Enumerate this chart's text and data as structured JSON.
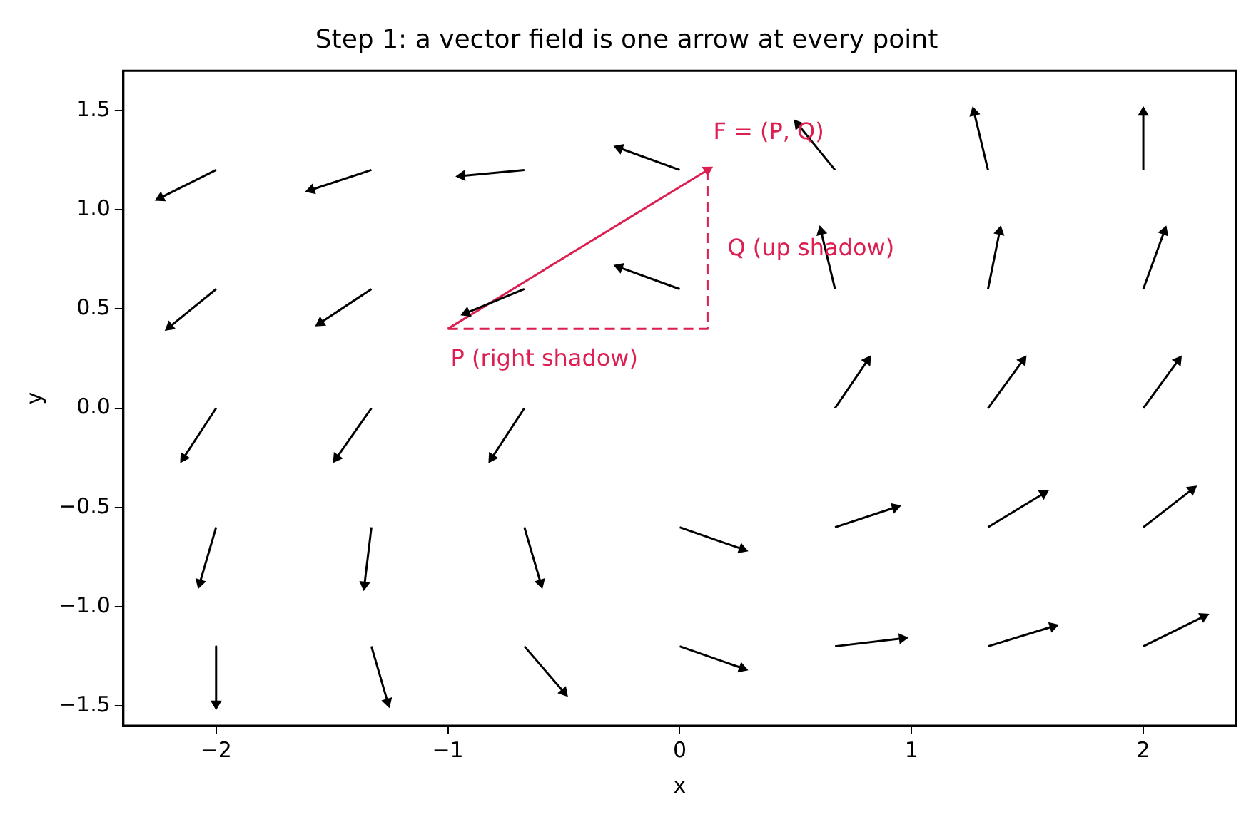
{
  "chart_data": {
    "type": "line",
    "title": "Step 1: a vector field is one arrow at every point",
    "xlabel": "x",
    "ylabel": "y",
    "xlim": [
      -2.4,
      2.4
    ],
    "ylim": [
      -1.6,
      1.7
    ],
    "xticks": [
      {
        "value": -2,
        "label": "−2"
      },
      {
        "value": -1,
        "label": "−1"
      },
      0,
      1,
      2
    ],
    "yticks": [
      {
        "value": -1.5,
        "label": "−1.5"
      },
      {
        "value": -1,
        "label": "−1.0"
      },
      {
        "value": -0.5,
        "label": "−0.5"
      },
      {
        "value": 0,
        "label": "0.0"
      },
      0.5,
      {
        "value": 1,
        "label": "1.0"
      },
      1.5
    ],
    "grid": false,
    "legend": false,
    "series": [
      {
        "color": "#000000",
        "x": [
          -2,
          -2.24
        ],
        "values": [
          1.2,
          1.06
        ]
      },
      {
        "color": "#000000",
        "x": [
          -1.33,
          -1.59
        ],
        "values": [
          1.2,
          1.1
        ]
      },
      {
        "color": "#000000",
        "x": [
          -0.67,
          -0.94
        ],
        "values": [
          1.2,
          1.17
        ]
      },
      {
        "color": "#000000",
        "x": [
          0,
          -0.26
        ],
        "values": [
          1.2,
          1.31
        ]
      },
      {
        "color": "#000000",
        "x": [
          0.67,
          0.51
        ],
        "values": [
          1.2,
          1.43
        ]
      },
      {
        "color": "#000000",
        "x": [
          1.33,
          1.27
        ],
        "values": [
          1.2,
          1.49
        ]
      },
      {
        "color": "#000000",
        "x": [
          2,
          2
        ],
        "values": [
          1.2,
          1.49
        ]
      },
      {
        "color": "#000000",
        "x": [
          -2,
          -2.2
        ],
        "values": [
          0.6,
          0.41
        ]
      },
      {
        "color": "#000000",
        "x": [
          -1.33,
          -1.55
        ],
        "values": [
          0.6,
          0.43
        ]
      },
      {
        "color": "#000000",
        "x": [
          -0.67,
          -0.92
        ],
        "values": [
          0.6,
          0.48
        ]
      },
      {
        "color": "#000000",
        "x": [
          0,
          -0.26
        ],
        "values": [
          0.6,
          0.71
        ]
      },
      {
        "color": "#000000",
        "x": [
          0.67,
          0.61
        ],
        "values": [
          0.6,
          0.89
        ]
      },
      {
        "color": "#000000",
        "x": [
          1.33,
          1.38
        ],
        "values": [
          0.6,
          0.89
        ]
      },
      {
        "color": "#000000",
        "x": [
          2,
          2.09
        ],
        "values": [
          0.6,
          0.89
        ]
      },
      {
        "color": "#000000",
        "x": [
          -2,
          -2.14
        ],
        "values": [
          0,
          -0.25
        ]
      },
      {
        "color": "#000000",
        "x": [
          -1.33,
          -1.48
        ],
        "values": [
          0,
          -0.25
        ]
      },
      {
        "color": "#000000",
        "x": [
          -0.67,
          -0.81
        ],
        "values": [
          0,
          -0.25
        ]
      },
      {
        "color": "#000000",
        "x": [
          0.67,
          0.81
        ],
        "values": [
          0,
          0.24
        ]
      },
      {
        "color": "#000000",
        "x": [
          1.33,
          1.48
        ],
        "values": [
          0,
          0.24
        ]
      },
      {
        "color": "#000000",
        "x": [
          2,
          2.15
        ],
        "values": [
          0,
          0.24
        ]
      },
      {
        "color": "#000000",
        "x": [
          -2,
          -2.07
        ],
        "values": [
          -0.6,
          -0.88
        ]
      },
      {
        "color": "#000000",
        "x": [
          -1.33,
          -1.36
        ],
        "values": [
          -0.6,
          -0.89
        ]
      },
      {
        "color": "#000000",
        "x": [
          -0.67,
          -0.6
        ],
        "values": [
          -0.6,
          -0.88
        ]
      },
      {
        "color": "#000000",
        "x": [
          0,
          0.27
        ],
        "values": [
          -0.6,
          -0.71
        ]
      },
      {
        "color": "#000000",
        "x": [
          0.67,
          0.93
        ],
        "values": [
          -0.6,
          -0.5
        ]
      },
      {
        "color": "#000000",
        "x": [
          1.33,
          1.57
        ],
        "values": [
          -0.6,
          -0.43
        ]
      },
      {
        "color": "#000000",
        "x": [
          2,
          2.21
        ],
        "values": [
          -0.6,
          -0.41
        ]
      },
      {
        "color": "#000000",
        "x": [
          -2,
          -2
        ],
        "values": [
          -1.2,
          -1.49
        ]
      },
      {
        "color": "#000000",
        "x": [
          -1.33,
          -1.26
        ],
        "values": [
          -1.2,
          -1.48
        ]
      },
      {
        "color": "#000000",
        "x": [
          -0.67,
          -0.5
        ],
        "values": [
          -1.2,
          -1.43
        ]
      },
      {
        "color": "#000000",
        "x": [
          0,
          0.27
        ],
        "values": [
          -1.2,
          -1.31
        ]
      },
      {
        "color": "#000000",
        "x": [
          0.67,
          0.96
        ],
        "values": [
          -1.2,
          -1.16
        ]
      },
      {
        "color": "#000000",
        "x": [
          1.33,
          1.61
        ],
        "values": [
          -1.2,
          -1.1
        ]
      },
      {
        "color": "#000000",
        "x": [
          2,
          2.26
        ],
        "values": [
          -1.2,
          -1.05
        ]
      },
      {
        "color": "#dc1e50",
        "x": [
          -1,
          0.12
        ],
        "values": [
          0.4,
          1.2
        ]
      },
      {
        "color": "#dc1e50",
        "line_style": "dashed",
        "x": [
          -1,
          0.12,
          0.12
        ],
        "values": [
          0.4,
          0.4,
          1.2
        ]
      }
    ],
    "annotations": [
      "F = (P, Q)",
      "Q (up shadow)",
      "P (right shadow)"
    ]
  }
}
